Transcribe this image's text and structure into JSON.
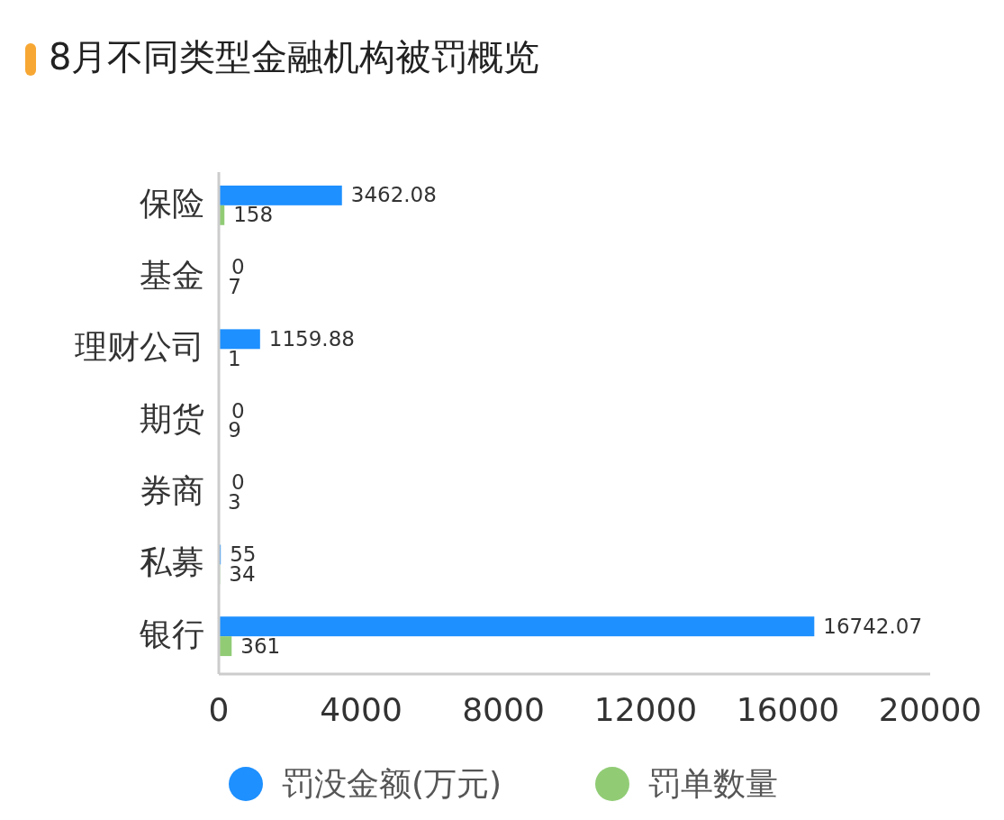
{
  "chart_data": {
    "type": "bar",
    "orientation": "horizontal",
    "title": "8月不同类型金融机构被罚概览",
    "categories": [
      "保险",
      "基金",
      "理财公司",
      "期货",
      "券商",
      "私募",
      "银行"
    ],
    "series": [
      {
        "name": "罚没金额(万元)",
        "color": "#1e90ff",
        "values": [
          3462.08,
          0,
          1159.88,
          0,
          0,
          55,
          16742.07
        ]
      },
      {
        "name": "罚单数量",
        "color": "#91cc75",
        "values": [
          158,
          7,
          1,
          9,
          3,
          34,
          361
        ]
      }
    ],
    "xlim": [
      0,
      20000
    ],
    "xticks": [
      0,
      4000,
      8000,
      12000,
      16000,
      20000
    ],
    "data_labels": true,
    "legend": "bottom",
    "grid": false
  }
}
